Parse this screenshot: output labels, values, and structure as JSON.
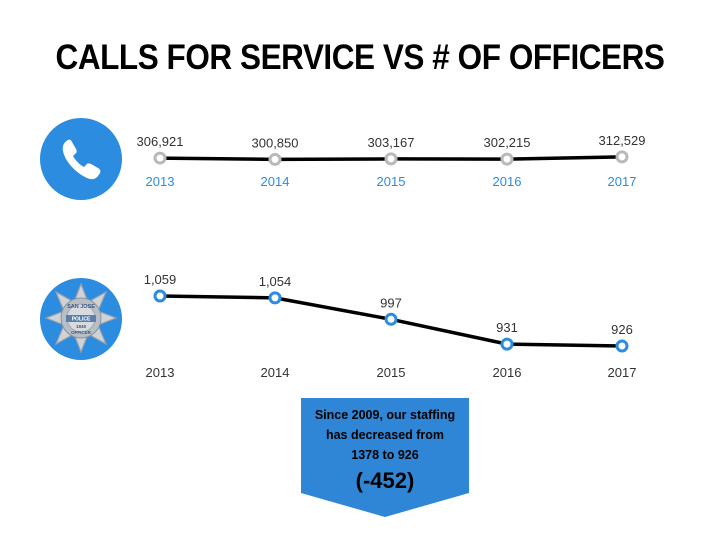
{
  "title": "CALLS FOR SERVICE VS # OF OFFICERS",
  "icons": {
    "top": "phone-icon",
    "bottom": "police-badge-icon"
  },
  "badge": {
    "line1": "SAN JOSE",
    "line2": "POLICE",
    "line3": "1849",
    "line4": "OFFICER"
  },
  "colors": {
    "accent": "#2b8ce0",
    "callout": "#2f86d6",
    "marker_gray": "#b9b9b9",
    "line": "#000000"
  },
  "callout": {
    "line1": "Since 2009, our staffing",
    "line2": "has decreased from",
    "line3": "1378 to 926",
    "big": "(-452)"
  },
  "chart_data": [
    {
      "type": "line",
      "title": "",
      "x": [
        "2013",
        "2014",
        "2015",
        "2016",
        "2017"
      ],
      "series": [
        {
          "name": "",
          "values": [
            306921,
            300850,
            303167,
            302215,
            312529
          ]
        }
      ],
      "value_labels": [
        "306,921",
        "300,850",
        "303,167",
        "302,215",
        "312,529"
      ],
      "ylim": [
        280000,
        330000
      ],
      "grid": false,
      "tick_color": "#2b8ce0"
    },
    {
      "type": "line",
      "title": "",
      "x": [
        "2013",
        "2014",
        "2015",
        "2016",
        "2017"
      ],
      "series": [
        {
          "name": "",
          "values": [
            1059,
            1054,
            997,
            931,
            926
          ]
        }
      ],
      "value_labels": [
        "1,059",
        "1,054",
        "997",
        "931",
        "926"
      ],
      "ylim": [
        926,
        1059
      ],
      "grid": false,
      "tick_color": "#333333"
    }
  ]
}
